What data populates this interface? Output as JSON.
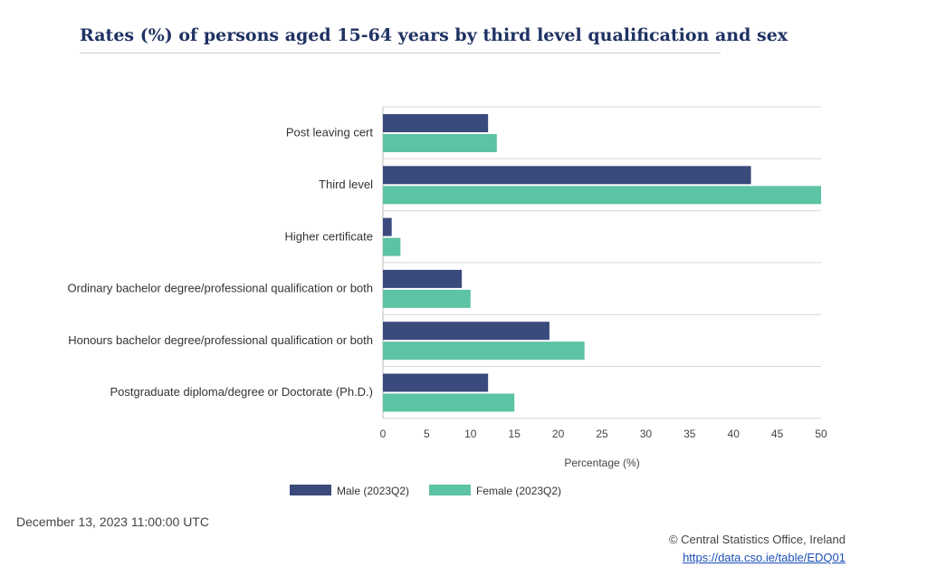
{
  "chart_data": {
    "type": "bar",
    "orientation": "horizontal",
    "title": "Rates (%) of persons aged 15-64 years by third level qualification and sex",
    "categories": [
      "Post leaving cert",
      "Third level",
      "Higher certificate",
      "Ordinary bachelor degree/professional qualification or both",
      "Honours bachelor degree/professional qualification or both",
      "Postgraduate diploma/degree or Doctorate (Ph.D.)"
    ],
    "series": [
      {
        "name": "Male (2023Q2)",
        "color": "#3b4a7c",
        "values": [
          12,
          42,
          1,
          9,
          19,
          12
        ]
      },
      {
        "name": "Female (2023Q2)",
        "color": "#5cc3a4",
        "values": [
          13,
          50,
          2,
          10,
          23,
          15
        ]
      }
    ],
    "xlabel": "Percentage (%)",
    "ylabel": "",
    "xlim": [
      0,
      50
    ],
    "xticks": [
      0,
      5,
      10,
      15,
      20,
      25,
      30,
      35,
      40,
      45,
      50
    ],
    "grid": true,
    "legend": "bottom-center"
  },
  "footer": {
    "timestamp": "December 13, 2023 11:00:00 UTC",
    "credit": "© Central Statistics Office, Ireland",
    "link": "https://data.cso.ie/table/EDQ01"
  }
}
